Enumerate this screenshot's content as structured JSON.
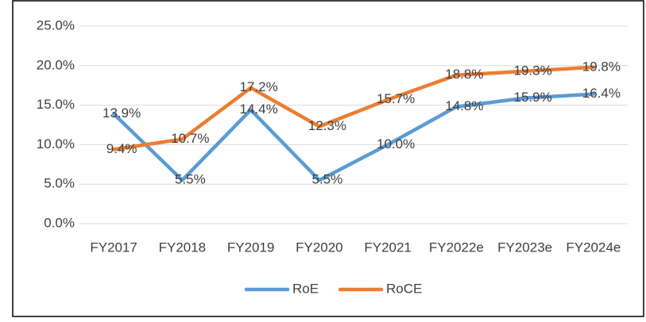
{
  "chart_data": {
    "type": "line",
    "categories": [
      "FY2017",
      "FY2018",
      "FY2019",
      "FY2020",
      "FY2021",
      "FY2022e",
      "FY2023e",
      "FY2024e"
    ],
    "series": [
      {
        "name": "RoE",
        "color": "#5b9bd5",
        "values": [
          13.9,
          5.5,
          14.4,
          5.5,
          10.0,
          14.8,
          15.9,
          16.4
        ],
        "value_labels": [
          "13.9%",
          "5.5%",
          "14.4%",
          "5.5%",
          "10.0%",
          "14.8%",
          "15.9%",
          "16.4%"
        ]
      },
      {
        "name": "RoCE",
        "color": "#ed7d31",
        "values": [
          9.4,
          10.7,
          17.2,
          12.3,
          15.7,
          18.8,
          19.3,
          19.8
        ],
        "value_labels": [
          "9.4%",
          "10.7%",
          "17.2%",
          "12.3%",
          "15.7%",
          "18.8%",
          "19.3%",
          "19.8%"
        ]
      }
    ],
    "ylim": [
      0,
      25
    ],
    "yticks": [
      {
        "value": 0,
        "label": "0.0%"
      },
      {
        "value": 5,
        "label": "5.0%"
      },
      {
        "value": 10,
        "label": "10.0%"
      },
      {
        "value": 15,
        "label": "15.0%"
      },
      {
        "value": 20,
        "label": "20.0%"
      },
      {
        "value": 25,
        "label": "25.0%"
      }
    ],
    "grid": true,
    "legend": "bottom"
  }
}
